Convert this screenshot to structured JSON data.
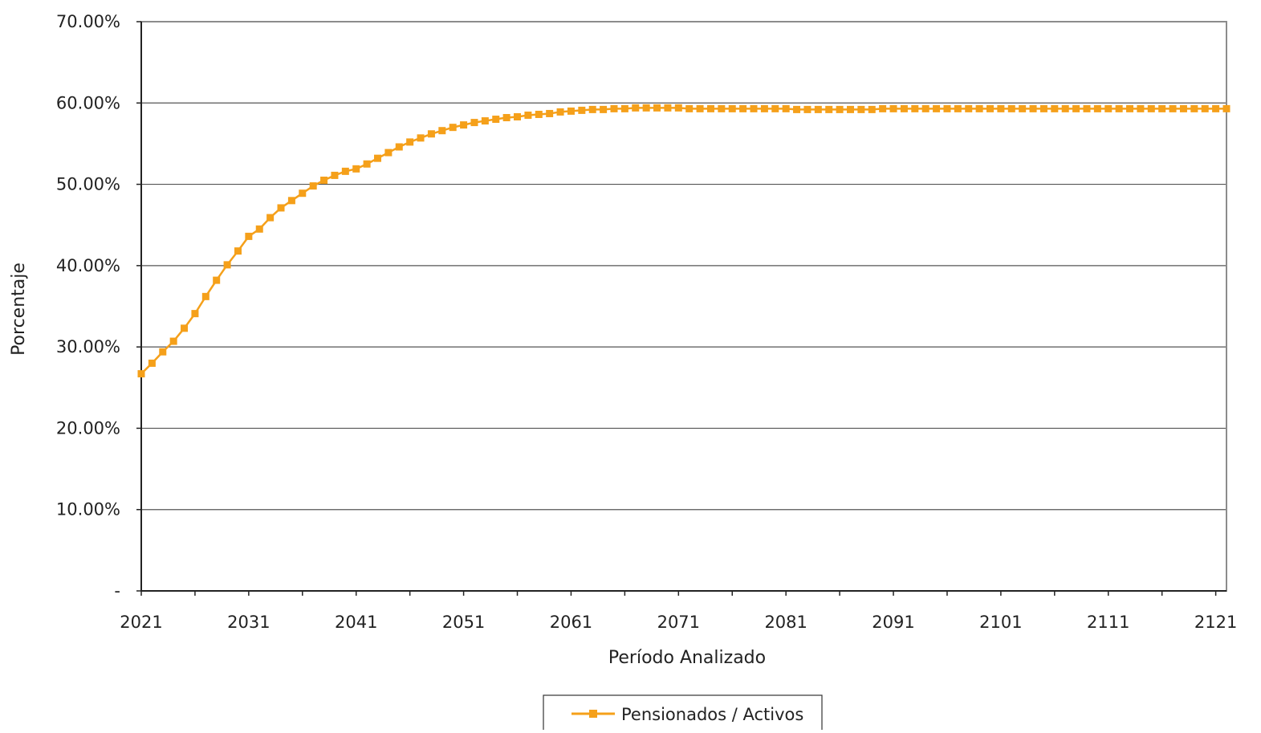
{
  "chart_data": {
    "type": "line",
    "title": "",
    "xlabel": "Período Analizado",
    "ylabel": "Porcentaje",
    "x_range": [
      2021,
      2122
    ],
    "xticks": [
      "2021",
      "2031",
      "2041",
      "2051",
      "2061",
      "2071",
      "2081",
      "2091",
      "2101",
      "2111",
      "2121"
    ],
    "ylim": [
      0,
      0.7
    ],
    "yticks": [
      "-",
      "10.00%",
      "20.00%",
      "30.00%",
      "40.00%",
      "50.00%",
      "60.00%",
      "70.00%"
    ],
    "grid": "horizontal",
    "legend_position": "bottom",
    "series": [
      {
        "name": "Pensionados / Activos",
        "color": "#F5A01A",
        "marker": "square",
        "x_start": 2021,
        "values": [
          0.267,
          0.28,
          0.294,
          0.307,
          0.323,
          0.341,
          0.362,
          0.382,
          0.401,
          0.418,
          0.436,
          0.445,
          0.459,
          0.471,
          0.48,
          0.489,
          0.498,
          0.505,
          0.511,
          0.516,
          0.519,
          0.525,
          0.532,
          0.539,
          0.546,
          0.552,
          0.557,
          0.562,
          0.566,
          0.57,
          0.573,
          0.576,
          0.578,
          0.58,
          0.582,
          0.583,
          0.585,
          0.586,
          0.587,
          0.589,
          0.59,
          0.591,
          0.592,
          0.592,
          0.593,
          0.593,
          0.594,
          0.594,
          0.594,
          0.594,
          0.594,
          0.593,
          0.593,
          0.593,
          0.593,
          0.593,
          0.593,
          0.593,
          0.593,
          0.593,
          0.593,
          0.592,
          0.592,
          0.592,
          0.592,
          0.592,
          0.592,
          0.592,
          0.592,
          0.593,
          0.593,
          0.593,
          0.593,
          0.593,
          0.593,
          0.593,
          0.593,
          0.593,
          0.593,
          0.593,
          0.593,
          0.593,
          0.593,
          0.593,
          0.593,
          0.593,
          0.593,
          0.593,
          0.593,
          0.593,
          0.593,
          0.593,
          0.593,
          0.593,
          0.593,
          0.593,
          0.593,
          0.593,
          0.593,
          0.593,
          0.593,
          0.593
        ]
      }
    ]
  }
}
